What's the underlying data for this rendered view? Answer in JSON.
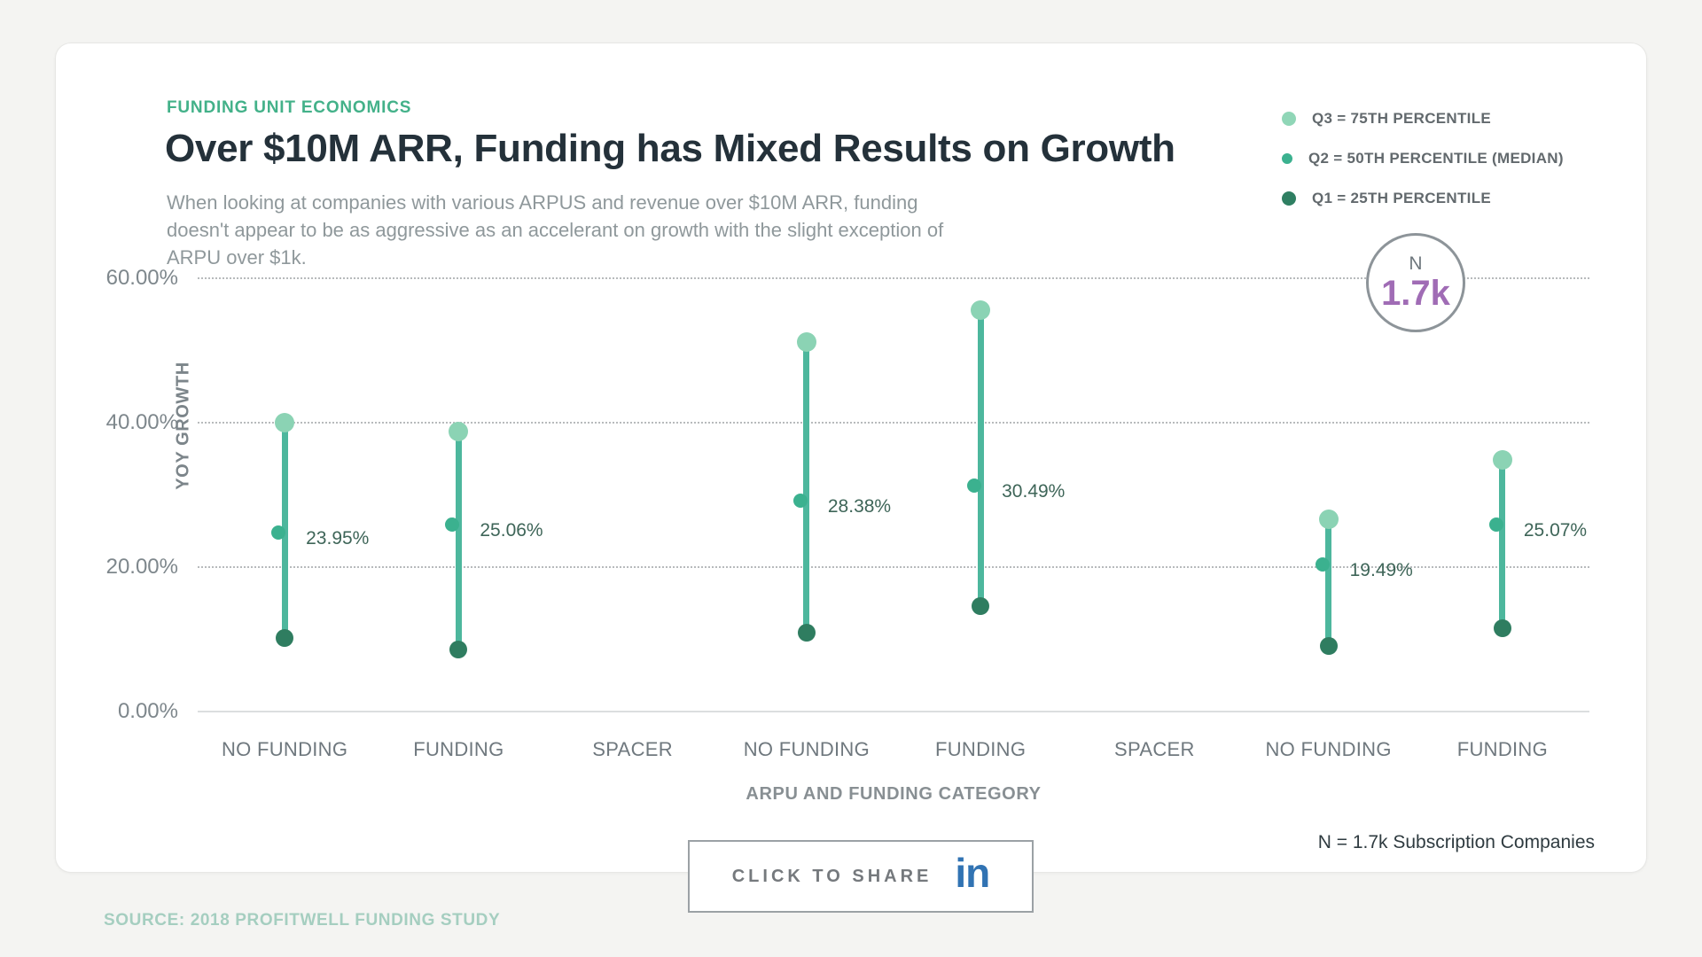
{
  "header": {
    "eyebrow": "FUNDING UNIT ECONOMICS",
    "title": "Over $10M ARR, Funding has Mixed Results on Growth",
    "subtitle": "When looking at companies with various ARPUS and revenue over $10M ARR, funding doesn't appear to be as aggressive as an accelerant on growth with the slight exception of ARPU over $1k."
  },
  "legend": {
    "items": [
      {
        "label": "Q3 = 75TH PERCENTILE",
        "marker": "dot-light"
      },
      {
        "label": "Q2 = 50TH PERCENTILE (MEDIAN)",
        "marker": "ring"
      },
      {
        "label": "Q1 = 25TH PERCENTILE",
        "marker": "dot-dark"
      }
    ]
  },
  "badge": {
    "label": "N",
    "value": "1.7k"
  },
  "chart_data": {
    "type": "lollipop-range",
    "title": "Over $10M ARR, Funding has Mixed Results on Growth",
    "xlabel": "ARPU AND FUNDING CATEGORY",
    "ylabel": "YOY GROWTH",
    "ylim": [
      0,
      62
    ],
    "yticks": [
      0,
      20,
      40,
      60
    ],
    "ytick_labels": [
      "0.00%",
      "20.00%",
      "40.00%",
      "60.00%"
    ],
    "grid": "dotted-horizontal",
    "legend_position": "top-right",
    "categories": [
      "NO FUNDING",
      "FUNDING",
      "SPACER",
      "NO FUNDING",
      "FUNDING",
      "SPACER",
      "NO FUNDING",
      "FUNDING"
    ],
    "series": [
      {
        "name": "Q3 = 75TH PERCENTILE",
        "values": [
          40.0,
          38.8,
          null,
          51.2,
          55.6,
          null,
          26.6,
          34.9
        ]
      },
      {
        "name": "Q2 = 50TH PERCENTILE (MEDIAN)",
        "values": [
          23.95,
          25.06,
          null,
          28.38,
          30.49,
          null,
          19.49,
          25.07
        ]
      },
      {
        "name": "Q1 = 25TH PERCENTILE",
        "values": [
          10.2,
          8.6,
          null,
          10.9,
          14.6,
          null,
          9.1,
          11.5
        ]
      }
    ],
    "median_labels": [
      "23.95%",
      "25.06%",
      null,
      "28.38%",
      "30.49%",
      null,
      "19.49%",
      "25.07%"
    ]
  },
  "footer": {
    "share_label": "CLICK TO SHARE",
    "linkedin_icon": "in",
    "n_caption": "N = 1.7k Subscription Companies",
    "source": "SOURCE: 2018 PROFITWELL FUNDING STUDY"
  },
  "colors": {
    "accent_teal": "#43b189",
    "line": "#4db79d",
    "q3_dot": "#8bd3b4",
    "median_ring": "#3bb18f",
    "q1_dot": "#2f7d60",
    "purple": "#a06cb5",
    "linkedin_blue": "#3173b3"
  }
}
